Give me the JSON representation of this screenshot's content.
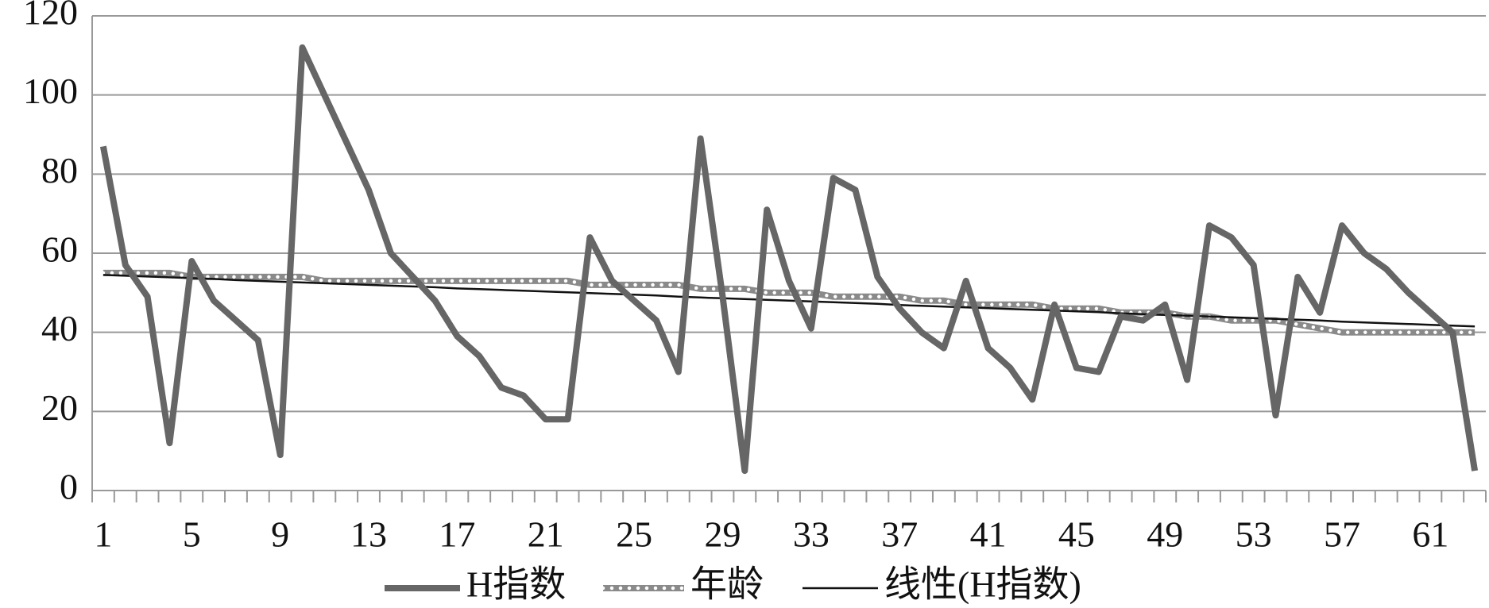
{
  "chart_data": {
    "type": "line",
    "categories": [
      1,
      null,
      null,
      null,
      5,
      null,
      null,
      null,
      9,
      null,
      null,
      null,
      13,
      null,
      null,
      null,
      17,
      null,
      null,
      null,
      21,
      null,
      null,
      null,
      25,
      null,
      null,
      null,
      29,
      null,
      null,
      null,
      33,
      null,
      null,
      null,
      37,
      null,
      null,
      null,
      41,
      null,
      null,
      null,
      45,
      null,
      null,
      null,
      49,
      null,
      null,
      null,
      53,
      null,
      null,
      null,
      57,
      null,
      null,
      null,
      61,
      null,
      null
    ],
    "series": [
      {
        "name": "H指数",
        "color": "#666666",
        "style": "solid",
        "values": [
          87,
          57,
          49,
          12,
          58,
          48,
          43,
          38,
          9,
          112,
          100,
          88,
          76,
          60,
          54,
          48,
          39,
          34,
          26,
          24,
          18,
          18,
          64,
          53,
          48,
          43,
          30,
          89,
          49,
          5,
          71,
          53,
          41,
          79,
          76,
          54,
          46,
          40,
          36,
          53,
          36,
          31,
          23,
          47,
          31,
          30,
          44,
          43,
          47,
          28,
          67,
          64,
          57,
          19,
          54,
          45,
          67,
          60,
          56,
          50,
          45,
          40,
          5
        ]
      },
      {
        "name": "年龄",
        "color": "#8a8a8a",
        "style": "dotted",
        "values": [
          55,
          55,
          55,
          55,
          54,
          54,
          54,
          54,
          54,
          54,
          53,
          53,
          53,
          53,
          53,
          53,
          53,
          53,
          53,
          53,
          53,
          53,
          52,
          52,
          52,
          52,
          52,
          51,
          51,
          51,
          50,
          50,
          50,
          49,
          49,
          49,
          49,
          48,
          48,
          47,
          47,
          47,
          47,
          46,
          46,
          46,
          45,
          45,
          45,
          44,
          44,
          43,
          43,
          43,
          42,
          41,
          40,
          40,
          40,
          40,
          40,
          40,
          40
        ]
      },
      {
        "name": "线性(H指数)",
        "color": "#111111",
        "style": "thin",
        "values": [
          54.5,
          54.3,
          54.1,
          53.9,
          53.7,
          53.5,
          53.2,
          53.0,
          52.8,
          52.6,
          52.4,
          52.2,
          52.0,
          51.8,
          51.6,
          51.4,
          51.1,
          50.9,
          50.7,
          50.5,
          50.3,
          50.1,
          49.9,
          49.7,
          49.5,
          49.3,
          49.0,
          48.8,
          48.6,
          48.4,
          48.2,
          48.0,
          47.8,
          47.6,
          47.4,
          47.2,
          46.9,
          46.7,
          46.5,
          46.3,
          46.1,
          45.9,
          45.7,
          45.5,
          45.3,
          45.1,
          44.8,
          44.6,
          44.4,
          44.2,
          44.0,
          43.8,
          43.6,
          43.4,
          43.2,
          43.0,
          42.7,
          42.5,
          42.3,
          42.1,
          41.9,
          41.7,
          41.5
        ]
      }
    ],
    "ylim": [
      0,
      120
    ],
    "yticks": [
      0,
      20,
      40,
      60,
      80,
      100,
      120
    ],
    "grid": true,
    "legend": "bottom"
  }
}
